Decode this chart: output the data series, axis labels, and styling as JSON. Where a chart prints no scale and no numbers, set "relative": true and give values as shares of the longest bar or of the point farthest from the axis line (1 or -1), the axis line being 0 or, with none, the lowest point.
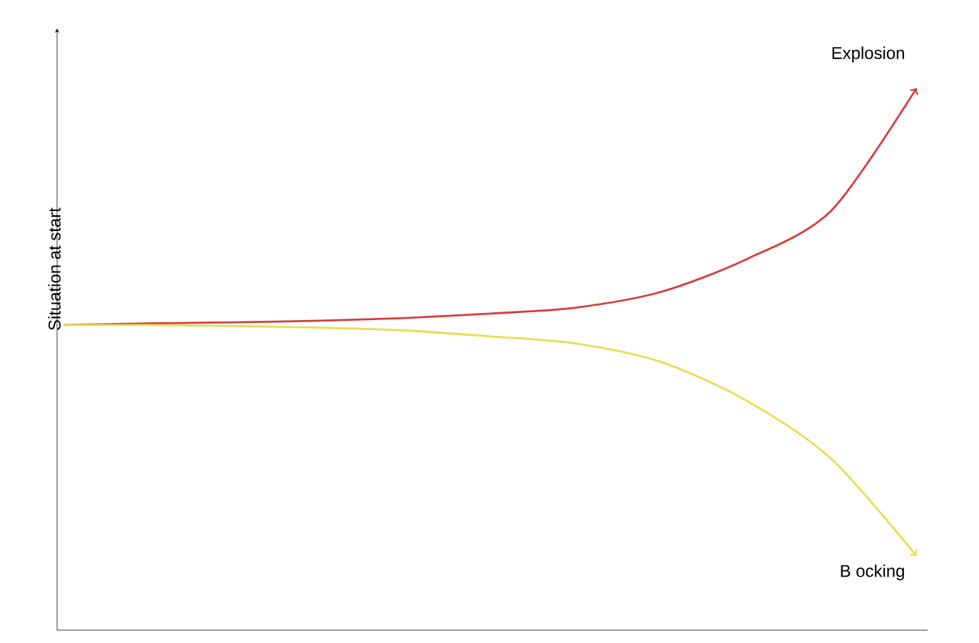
{
  "chart_data": {
    "type": "line",
    "relative": true,
    "ylabel": "Situation at start",
    "categories": [
      null,
      null,
      null,
      null,
      null,
      null,
      null,
      null,
      null,
      null,
      null
    ],
    "series": [
      {
        "name": "Explosion",
        "color": "#d93a3a",
        "values": [
          0.563,
          0.566,
          0.568,
          0.571,
          0.576,
          0.584,
          0.595,
          0.624,
          0.684,
          0.774,
          1
        ]
      },
      {
        "name": "B ocking",
        "color": "#e8dc50",
        "values": [
          0.563,
          0.563,
          0.561,
          0.558,
          0.553,
          0.542,
          0.529,
          0.495,
          0.424,
          0.316,
          0.137
        ]
      }
    ]
  }
}
